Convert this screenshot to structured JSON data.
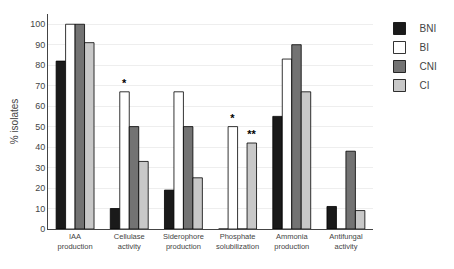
{
  "chart_data": {
    "type": "bar",
    "categories": [
      "IAA\nproduction",
      "Cellulase\nactivity",
      "Siderophore\nproduction",
      "Phosphate\nsolubilization",
      "Ammonia\nproduction",
      "Antifungal\nactivity"
    ],
    "series": [
      {
        "name": "BNI",
        "color": "#1a1a1a",
        "values": [
          82,
          10,
          19,
          0,
          55,
          11
        ]
      },
      {
        "name": "BI",
        "color": "#ffffff",
        "values": [
          100,
          67,
          67,
          50,
          83,
          0
        ]
      },
      {
        "name": "CNI",
        "color": "#737373",
        "values": [
          100,
          50,
          50,
          0,
          90,
          38
        ]
      },
      {
        "name": "CI",
        "color": "#c8c8c8",
        "values": [
          91,
          33,
          25,
          42,
          67,
          9
        ]
      }
    ],
    "ylabel": "% isolates",
    "ylim": [
      0,
      105
    ],
    "yticks": [
      0,
      10,
      20,
      30,
      40,
      50,
      60,
      70,
      80,
      90,
      100
    ],
    "grid": true,
    "legend": "right",
    "annotations": [
      {
        "text": "*",
        "category": "Cellulase\nactivity",
        "series": "BI"
      },
      {
        "text": "*",
        "category": "Phosphate\nsolubilization",
        "series": "BI"
      },
      {
        "text": "**",
        "category": "Phosphate\nsolubilization",
        "series": "CI"
      }
    ]
  }
}
